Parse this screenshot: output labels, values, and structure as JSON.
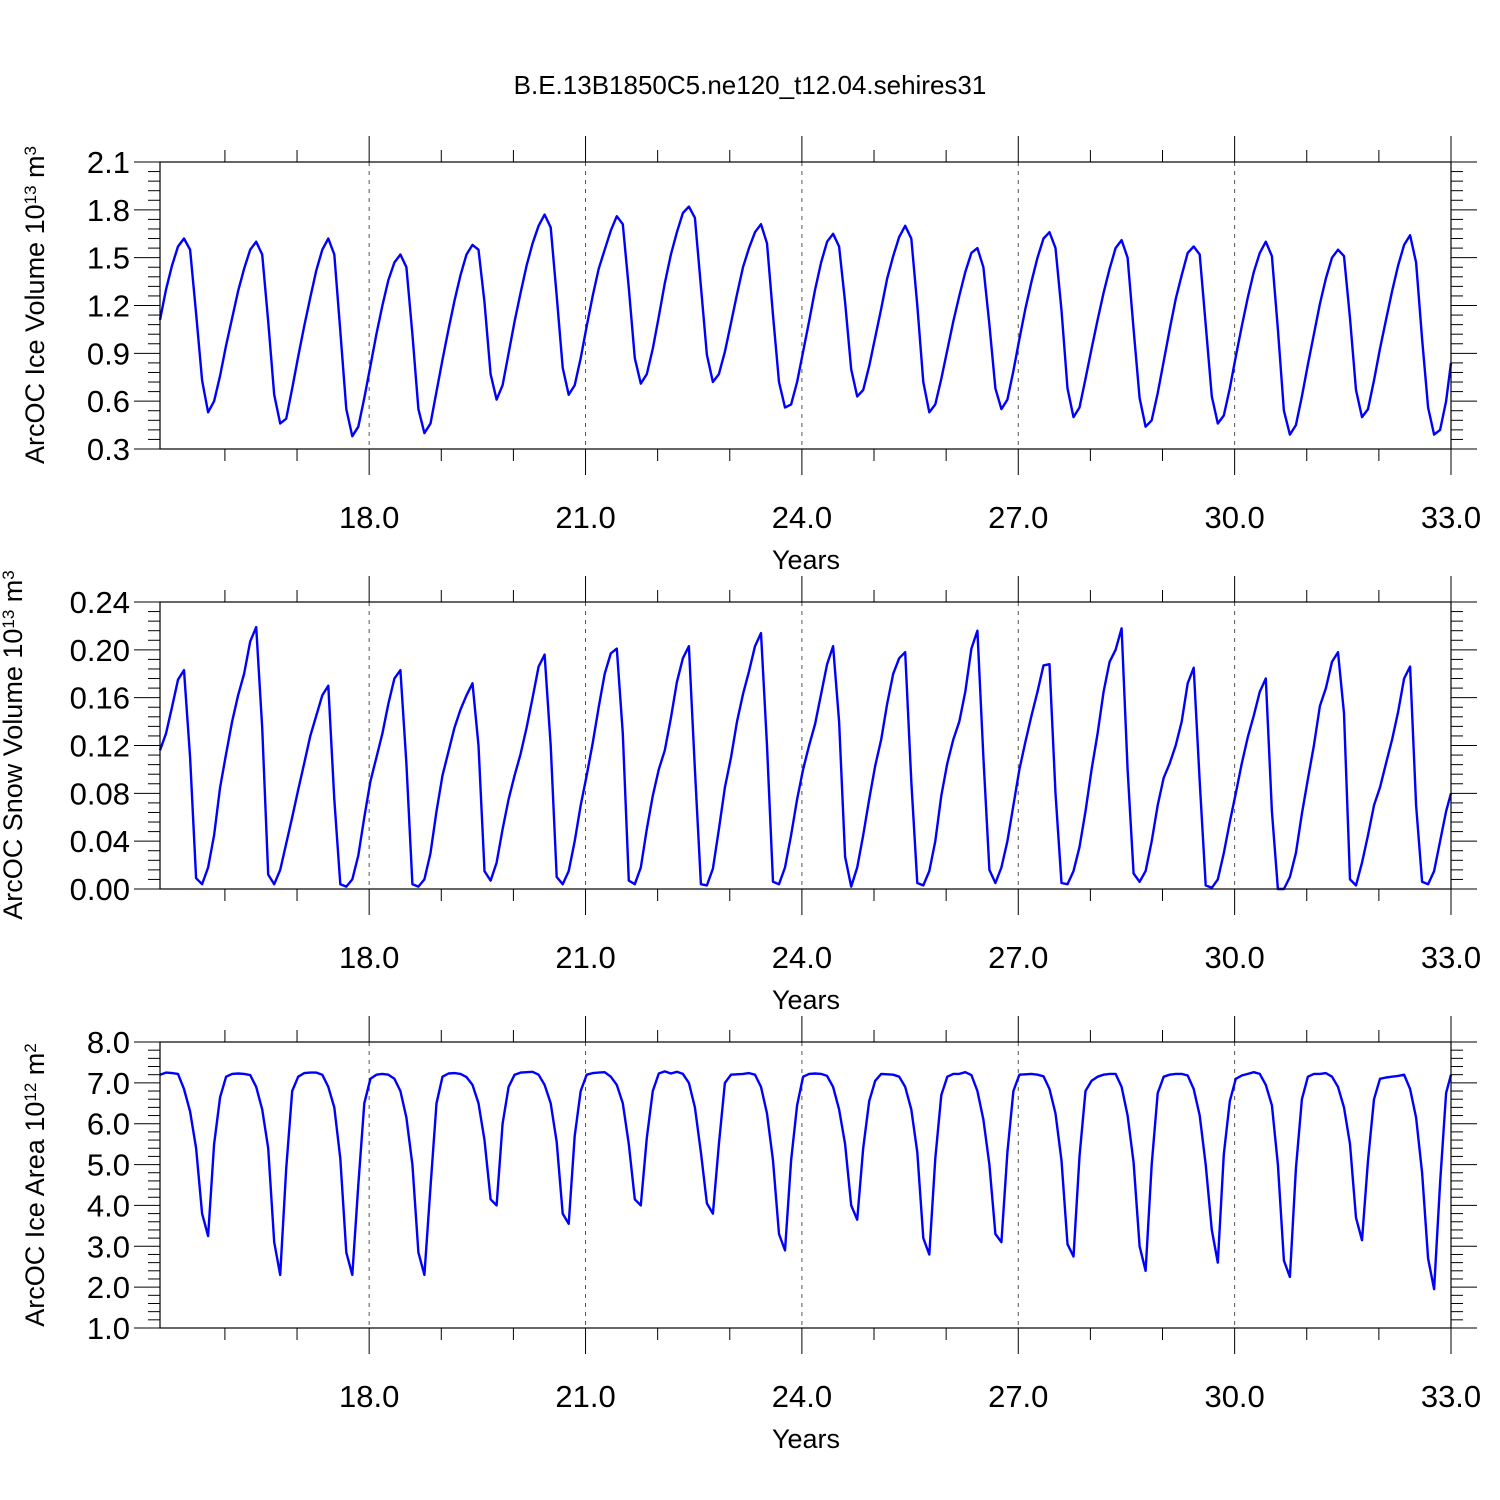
{
  "title": "B.E.13B1850C5.ne120_t12.04.sehires31",
  "line_color": "#0000ff",
  "chart_data": [
    {
      "type": "line",
      "name": "ice-volume",
      "xlabel": "Years",
      "ylabel": {
        "text": "ArcOC Ice Volume 10",
        "exp": "13",
        "unit": " m",
        "unit_exp": "3"
      },
      "xlim": [
        15.1,
        33.0
      ],
      "ylim": [
        0.3,
        2.1
      ],
      "xticks": [
        18,
        21,
        24,
        27,
        30,
        33
      ],
      "xtick_labels": [
        "18.0",
        "21.0",
        "24.0",
        "27.0",
        "30.0",
        "33.0"
      ],
      "yticks": [
        0.3,
        0.6,
        0.9,
        1.2,
        1.5,
        1.8,
        2.1
      ],
      "ytick_labels": [
        "0.3",
        "0.6",
        "0.9",
        "1.2",
        "1.5",
        "1.8",
        "2.1"
      ],
      "series": [
        {
          "x0": 15.1,
          "dx": 0.08333,
          "values": [
            1.11,
            1.3,
            1.45,
            1.57,
            1.62,
            1.55,
            1.15,
            0.73,
            0.53,
            0.6,
            0.76,
            0.95,
            1.12,
            1.29,
            1.43,
            1.55,
            1.6,
            1.52,
            1.1,
            0.64,
            0.46,
            0.49,
            0.68,
            0.88,
            1.07,
            1.25,
            1.42,
            1.55,
            1.62,
            1.52,
            1.04,
            0.55,
            0.38,
            0.44,
            0.62,
            0.82,
            1.02,
            1.2,
            1.36,
            1.47,
            1.52,
            1.44,
            1.02,
            0.55,
            0.4,
            0.46,
            0.66,
            0.86,
            1.05,
            1.23,
            1.39,
            1.52,
            1.58,
            1.55,
            1.22,
            0.77,
            0.61,
            0.7,
            0.9,
            1.1,
            1.28,
            1.45,
            1.59,
            1.7,
            1.77,
            1.69,
            1.26,
            0.81,
            0.64,
            0.7,
            0.87,
            1.07,
            1.26,
            1.43,
            1.55,
            1.67,
            1.76,
            1.71,
            1.31,
            0.87,
            0.71,
            0.77,
            0.93,
            1.13,
            1.34,
            1.52,
            1.66,
            1.78,
            1.82,
            1.75,
            1.32,
            0.89,
            0.72,
            0.77,
            0.91,
            1.09,
            1.27,
            1.44,
            1.56,
            1.66,
            1.71,
            1.59,
            1.14,
            0.72,
            0.56,
            0.58,
            0.72,
            0.91,
            1.1,
            1.3,
            1.47,
            1.6,
            1.65,
            1.57,
            1.22,
            0.8,
            0.63,
            0.67,
            0.82,
            1.0,
            1.18,
            1.37,
            1.51,
            1.63,
            1.7,
            1.62,
            1.2,
            0.72,
            0.53,
            0.58,
            0.74,
            0.92,
            1.1,
            1.26,
            1.41,
            1.53,
            1.56,
            1.44,
            1.08,
            0.68,
            0.55,
            0.61,
            0.79,
            0.99,
            1.18,
            1.35,
            1.5,
            1.62,
            1.66,
            1.56,
            1.17,
            0.68,
            0.5,
            0.56,
            0.74,
            0.93,
            1.11,
            1.28,
            1.43,
            1.56,
            1.61,
            1.5,
            1.05,
            0.62,
            0.44,
            0.48,
            0.65,
            0.85,
            1.05,
            1.24,
            1.39,
            1.53,
            1.57,
            1.52,
            1.08,
            0.63,
            0.46,
            0.51,
            0.68,
            0.88,
            1.07,
            1.25,
            1.41,
            1.53,
            1.6,
            1.51,
            1.05,
            0.54,
            0.39,
            0.45,
            0.63,
            0.83,
            1.02,
            1.21,
            1.37,
            1.5,
            1.55,
            1.51,
            1.12,
            0.67,
            0.5,
            0.55,
            0.73,
            0.93,
            1.11,
            1.29,
            1.45,
            1.58,
            1.64,
            1.47,
            0.99,
            0.56,
            0.39,
            0.42,
            0.6,
            0.84
          ]
        }
      ]
    },
    {
      "type": "line",
      "name": "snow-volume",
      "xlabel": "Years",
      "ylabel": {
        "text": "ArcOC Snow Volume 10",
        "exp": "13",
        "unit": " m",
        "unit_exp": "3"
      },
      "xlim": [
        15.1,
        33.0
      ],
      "ylim": [
        0.0,
        0.24
      ],
      "xticks": [
        18,
        21,
        24,
        27,
        30,
        33
      ],
      "xtick_labels": [
        "18.0",
        "21.0",
        "24.0",
        "27.0",
        "30.0",
        "33.0"
      ],
      "yticks": [
        0.0,
        0.04,
        0.08,
        0.12,
        0.16,
        0.2,
        0.24
      ],
      "ytick_labels": [
        "0.00",
        "0.04",
        "0.08",
        "0.12",
        "0.16",
        "0.20",
        "0.24"
      ],
      "series": [
        {
          "x0": 15.1,
          "dx": 0.08333,
          "values": [
            0.116,
            0.13,
            0.152,
            0.175,
            0.183,
            0.11,
            0.009,
            0.004,
            0.018,
            0.045,
            0.085,
            0.113,
            0.14,
            0.162,
            0.18,
            0.207,
            0.219,
            0.135,
            0.012,
            0.004,
            0.016,
            0.038,
            0.06,
            0.083,
            0.105,
            0.128,
            0.145,
            0.162,
            0.17,
            0.075,
            0.004,
            0.002,
            0.008,
            0.028,
            0.06,
            0.09,
            0.11,
            0.13,
            0.155,
            0.176,
            0.183,
            0.105,
            0.004,
            0.002,
            0.008,
            0.03,
            0.065,
            0.095,
            0.115,
            0.135,
            0.15,
            0.162,
            0.172,
            0.12,
            0.015,
            0.007,
            0.022,
            0.05,
            0.075,
            0.095,
            0.113,
            0.135,
            0.16,
            0.186,
            0.196,
            0.12,
            0.01,
            0.004,
            0.015,
            0.04,
            0.07,
            0.095,
            0.122,
            0.152,
            0.18,
            0.197,
            0.201,
            0.13,
            0.007,
            0.004,
            0.018,
            0.05,
            0.078,
            0.1,
            0.116,
            0.143,
            0.173,
            0.193,
            0.203,
            0.1,
            0.004,
            0.003,
            0.017,
            0.05,
            0.085,
            0.11,
            0.14,
            0.163,
            0.182,
            0.203,
            0.214,
            0.12,
            0.006,
            0.004,
            0.018,
            0.045,
            0.075,
            0.1,
            0.12,
            0.138,
            0.163,
            0.188,
            0.203,
            0.14,
            0.027,
            0.002,
            0.018,
            0.045,
            0.075,
            0.103,
            0.125,
            0.155,
            0.18,
            0.193,
            0.198,
            0.09,
            0.005,
            0.003,
            0.015,
            0.04,
            0.078,
            0.105,
            0.125,
            0.14,
            0.165,
            0.201,
            0.216,
            0.11,
            0.016,
            0.005,
            0.018,
            0.04,
            0.07,
            0.1,
            0.123,
            0.145,
            0.165,
            0.187,
            0.188,
            0.08,
            0.005,
            0.004,
            0.015,
            0.035,
            0.065,
            0.1,
            0.13,
            0.165,
            0.19,
            0.2,
            0.218,
            0.1,
            0.013,
            0.006,
            0.015,
            0.04,
            0.07,
            0.093,
            0.105,
            0.12,
            0.14,
            0.172,
            0.185,
            0.09,
            0.003,
            0.001,
            0.008,
            0.03,
            0.056,
            0.08,
            0.105,
            0.127,
            0.145,
            0.165,
            0.176,
            0.065,
            0.0,
            0.0,
            0.01,
            0.03,
            0.063,
            0.092,
            0.12,
            0.153,
            0.168,
            0.19,
            0.198,
            0.147,
            0.008,
            0.003,
            0.022,
            0.045,
            0.07,
            0.085,
            0.105,
            0.125,
            0.148,
            0.176,
            0.186,
            0.07,
            0.006,
            0.004,
            0.015,
            0.04,
            0.065,
            0.08
          ]
        }
      ]
    },
    {
      "type": "line",
      "name": "ice-area",
      "xlabel": "Years",
      "ylabel": {
        "text": "ArcOC Ice Area 10",
        "exp": "12",
        "unit": " m",
        "unit_exp": "2"
      },
      "xlim": [
        15.1,
        33.0
      ],
      "ylim": [
        1.0,
        8.0
      ],
      "xticks": [
        18,
        21,
        24,
        27,
        30,
        33
      ],
      "xtick_labels": [
        "18.0",
        "21.0",
        "24.0",
        "27.0",
        "30.0",
        "33.0"
      ],
      "yticks": [
        1,
        2,
        3,
        4,
        5,
        6,
        7,
        8
      ],
      "ytick_labels": [
        "1.0",
        "2.0",
        "3.0",
        "4.0",
        "5.0",
        "6.0",
        "7.0",
        "8.0"
      ],
      "series": [
        {
          "x0": 15.1,
          "dx": 0.08333,
          "values": [
            7.2,
            7.25,
            7.24,
            7.22,
            6.85,
            6.3,
            5.4,
            3.8,
            3.25,
            5.5,
            6.65,
            7.15,
            7.22,
            7.23,
            7.22,
            7.19,
            6.9,
            6.35,
            5.4,
            3.1,
            2.3,
            4.9,
            6.8,
            7.15,
            7.24,
            7.25,
            7.25,
            7.2,
            6.9,
            6.4,
            5.15,
            2.85,
            2.3,
            4.5,
            6.5,
            7.1,
            7.2,
            7.22,
            7.2,
            7.1,
            6.8,
            6.15,
            5.0,
            2.85,
            2.3,
            4.45,
            6.5,
            7.15,
            7.23,
            7.24,
            7.22,
            7.14,
            6.95,
            6.5,
            5.6,
            4.15,
            4.0,
            6.0,
            6.9,
            7.2,
            7.25,
            7.26,
            7.27,
            7.2,
            6.95,
            6.5,
            5.55,
            3.8,
            3.55,
            5.7,
            6.8,
            7.2,
            7.24,
            7.25,
            7.26,
            7.15,
            6.95,
            6.5,
            5.5,
            4.15,
            4.0,
            5.65,
            6.8,
            7.23,
            7.28,
            7.23,
            7.27,
            7.22,
            7.0,
            6.4,
            5.3,
            4.05,
            3.8,
            5.5,
            7.0,
            7.2,
            7.21,
            7.22,
            7.24,
            7.2,
            6.9,
            6.25,
            5.1,
            3.3,
            2.9,
            5.1,
            6.45,
            7.15,
            7.22,
            7.23,
            7.22,
            7.17,
            6.9,
            6.35,
            5.5,
            4.0,
            3.65,
            5.4,
            6.55,
            7.05,
            7.22,
            7.21,
            7.2,
            7.15,
            6.9,
            6.35,
            5.3,
            3.2,
            2.8,
            5.15,
            6.7,
            7.15,
            7.22,
            7.22,
            7.26,
            7.19,
            6.8,
            6.1,
            5.0,
            3.3,
            3.1,
            5.3,
            6.8,
            7.2,
            7.21,
            7.22,
            7.2,
            7.16,
            6.85,
            6.25,
            5.1,
            3.05,
            2.75,
            5.2,
            6.8,
            7.05,
            7.15,
            7.2,
            7.22,
            7.22,
            6.9,
            6.2,
            5.05,
            3.0,
            2.4,
            5.0,
            6.75,
            7.15,
            7.2,
            7.22,
            7.22,
            7.18,
            6.85,
            6.2,
            5.0,
            3.4,
            2.6,
            5.25,
            6.55,
            7.1,
            7.18,
            7.22,
            7.26,
            7.22,
            6.95,
            6.45,
            5.0,
            2.65,
            2.25,
            4.9,
            6.6,
            7.15,
            7.22,
            7.22,
            7.24,
            7.15,
            6.9,
            6.4,
            5.5,
            3.7,
            3.15,
            5.1,
            6.6,
            7.1,
            7.13,
            7.15,
            7.17,
            7.2,
            6.85,
            6.15,
            4.8,
            2.7,
            1.95,
            4.55,
            6.75,
            7.2
          ]
        }
      ]
    }
  ]
}
